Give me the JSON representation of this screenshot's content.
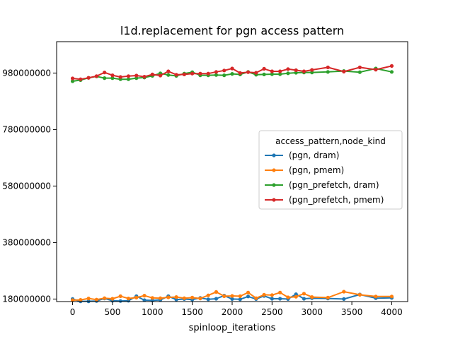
{
  "chart_data": {
    "type": "line",
    "title": "l1d.replacement for pgn access pattern",
    "xlabel": "spinloop_iterations",
    "ylabel": "",
    "xlim": [
      -200,
      4200
    ],
    "ylim": [
      171000000,
      1091000000
    ],
    "x_ticks": [
      0,
      500,
      1000,
      1500,
      2000,
      2500,
      3000,
      3500,
      4000
    ],
    "x_tick_labels": [
      "0",
      "500",
      "1000",
      "1500",
      "2000",
      "2500",
      "3000",
      "3500",
      "4000"
    ],
    "y_ticks": [
      180000000,
      380000000,
      580000000,
      780000000,
      980000000
    ],
    "y_tick_labels": [
      "180000000",
      "380000000",
      "580000000",
      "780000000",
      "980000000"
    ],
    "grid": false,
    "legend": {
      "title": "access_pattern,node_kind",
      "position": "center-right"
    },
    "series": [
      {
        "name": "(pgn, dram)",
        "color": "#1f77b4",
        "x": [
          0,
          100,
          200,
          300,
          400,
          500,
          600,
          700,
          800,
          900,
          1000,
          1100,
          1200,
          1300,
          1400,
          1500,
          1600,
          1700,
          1800,
          1900,
          2000,
          2100,
          2200,
          2300,
          2400,
          2500,
          2600,
          2700,
          2800,
          2900,
          3000,
          3200,
          3400,
          3600,
          3800,
          4000
        ],
        "values": [
          180000000,
          172000000,
          172000000,
          173000000,
          182000000,
          174000000,
          173000000,
          174000000,
          190000000,
          176000000,
          175000000,
          177000000,
          190000000,
          178000000,
          180000000,
          178000000,
          184000000,
          179000000,
          181000000,
          192000000,
          180000000,
          179000000,
          189000000,
          180000000,
          191000000,
          181000000,
          181000000,
          180000000,
          197000000,
          181000000,
          183000000,
          182000000,
          180000000,
          196000000,
          183000000,
          184000000
        ]
      },
      {
        "name": "(pgn, pmem)",
        "color": "#ff7f0e",
        "x": [
          0,
          100,
          200,
          300,
          400,
          500,
          600,
          700,
          800,
          900,
          1000,
          1100,
          1200,
          1300,
          1400,
          1500,
          1600,
          1700,
          1800,
          1900,
          2000,
          2100,
          2200,
          2300,
          2400,
          2500,
          2600,
          2700,
          2800,
          2900,
          3000,
          3200,
          3400,
          3600,
          3800,
          4000
        ],
        "values": [
          176000000,
          177000000,
          182000000,
          178000000,
          183000000,
          181000000,
          190000000,
          182000000,
          185000000,
          192000000,
          184000000,
          183000000,
          186000000,
          187000000,
          183000000,
          185000000,
          182000000,
          193000000,
          205000000,
          190000000,
          191000000,
          190000000,
          203000000,
          183000000,
          195000000,
          194000000,
          203000000,
          186000000,
          188000000,
          199000000,
          187000000,
          185000000,
          206000000,
          195000000,
          189000000,
          189000000
        ]
      },
      {
        "name": "(pgn_prefetch, dram)",
        "color": "#2ca02c",
        "x": [
          0,
          100,
          200,
          300,
          400,
          500,
          600,
          700,
          800,
          900,
          1000,
          1100,
          1200,
          1300,
          1400,
          1500,
          1600,
          1700,
          1800,
          1900,
          2000,
          2100,
          2200,
          2300,
          2400,
          2500,
          2600,
          2700,
          2800,
          2900,
          3000,
          3200,
          3400,
          3600,
          3800,
          4000
        ],
        "values": [
          951000000,
          955000000,
          963000000,
          968000000,
          962000000,
          962000000,
          958000000,
          958000000,
          962000000,
          964000000,
          970000000,
          979000000,
          973000000,
          970000000,
          978000000,
          983000000,
          972000000,
          972000000,
          973000000,
          972000000,
          977000000,
          975000000,
          984000000,
          974000000,
          975000000,
          976000000,
          976000000,
          979000000,
          981000000,
          982000000,
          982000000,
          984000000,
          987000000,
          983000000,
          996000000,
          984000000
        ]
      },
      {
        "name": "(pgn_prefetch, pmem)",
        "color": "#d62728",
        "x": [
          0,
          100,
          200,
          300,
          400,
          500,
          600,
          700,
          800,
          900,
          1000,
          1100,
          1200,
          1300,
          1400,
          1500,
          1600,
          1700,
          1800,
          1900,
          2000,
          2100,
          2200,
          2300,
          2400,
          2500,
          2600,
          2700,
          2800,
          2900,
          3000,
          3200,
          3400,
          3600,
          3800,
          4000
        ],
        "values": [
          961000000,
          958000000,
          963000000,
          969000000,
          982000000,
          972000000,
          966000000,
          969000000,
          971000000,
          967000000,
          975000000,
          971000000,
          986000000,
          974000000,
          975000000,
          978000000,
          978000000,
          978000000,
          984000000,
          989000000,
          996000000,
          980000000,
          983000000,
          981000000,
          995000000,
          986000000,
          986000000,
          994000000,
          990000000,
          986000000,
          991000000,
          1000000000,
          985000000,
          1000000000,
          992000000,
          1005000000
        ]
      }
    ]
  }
}
